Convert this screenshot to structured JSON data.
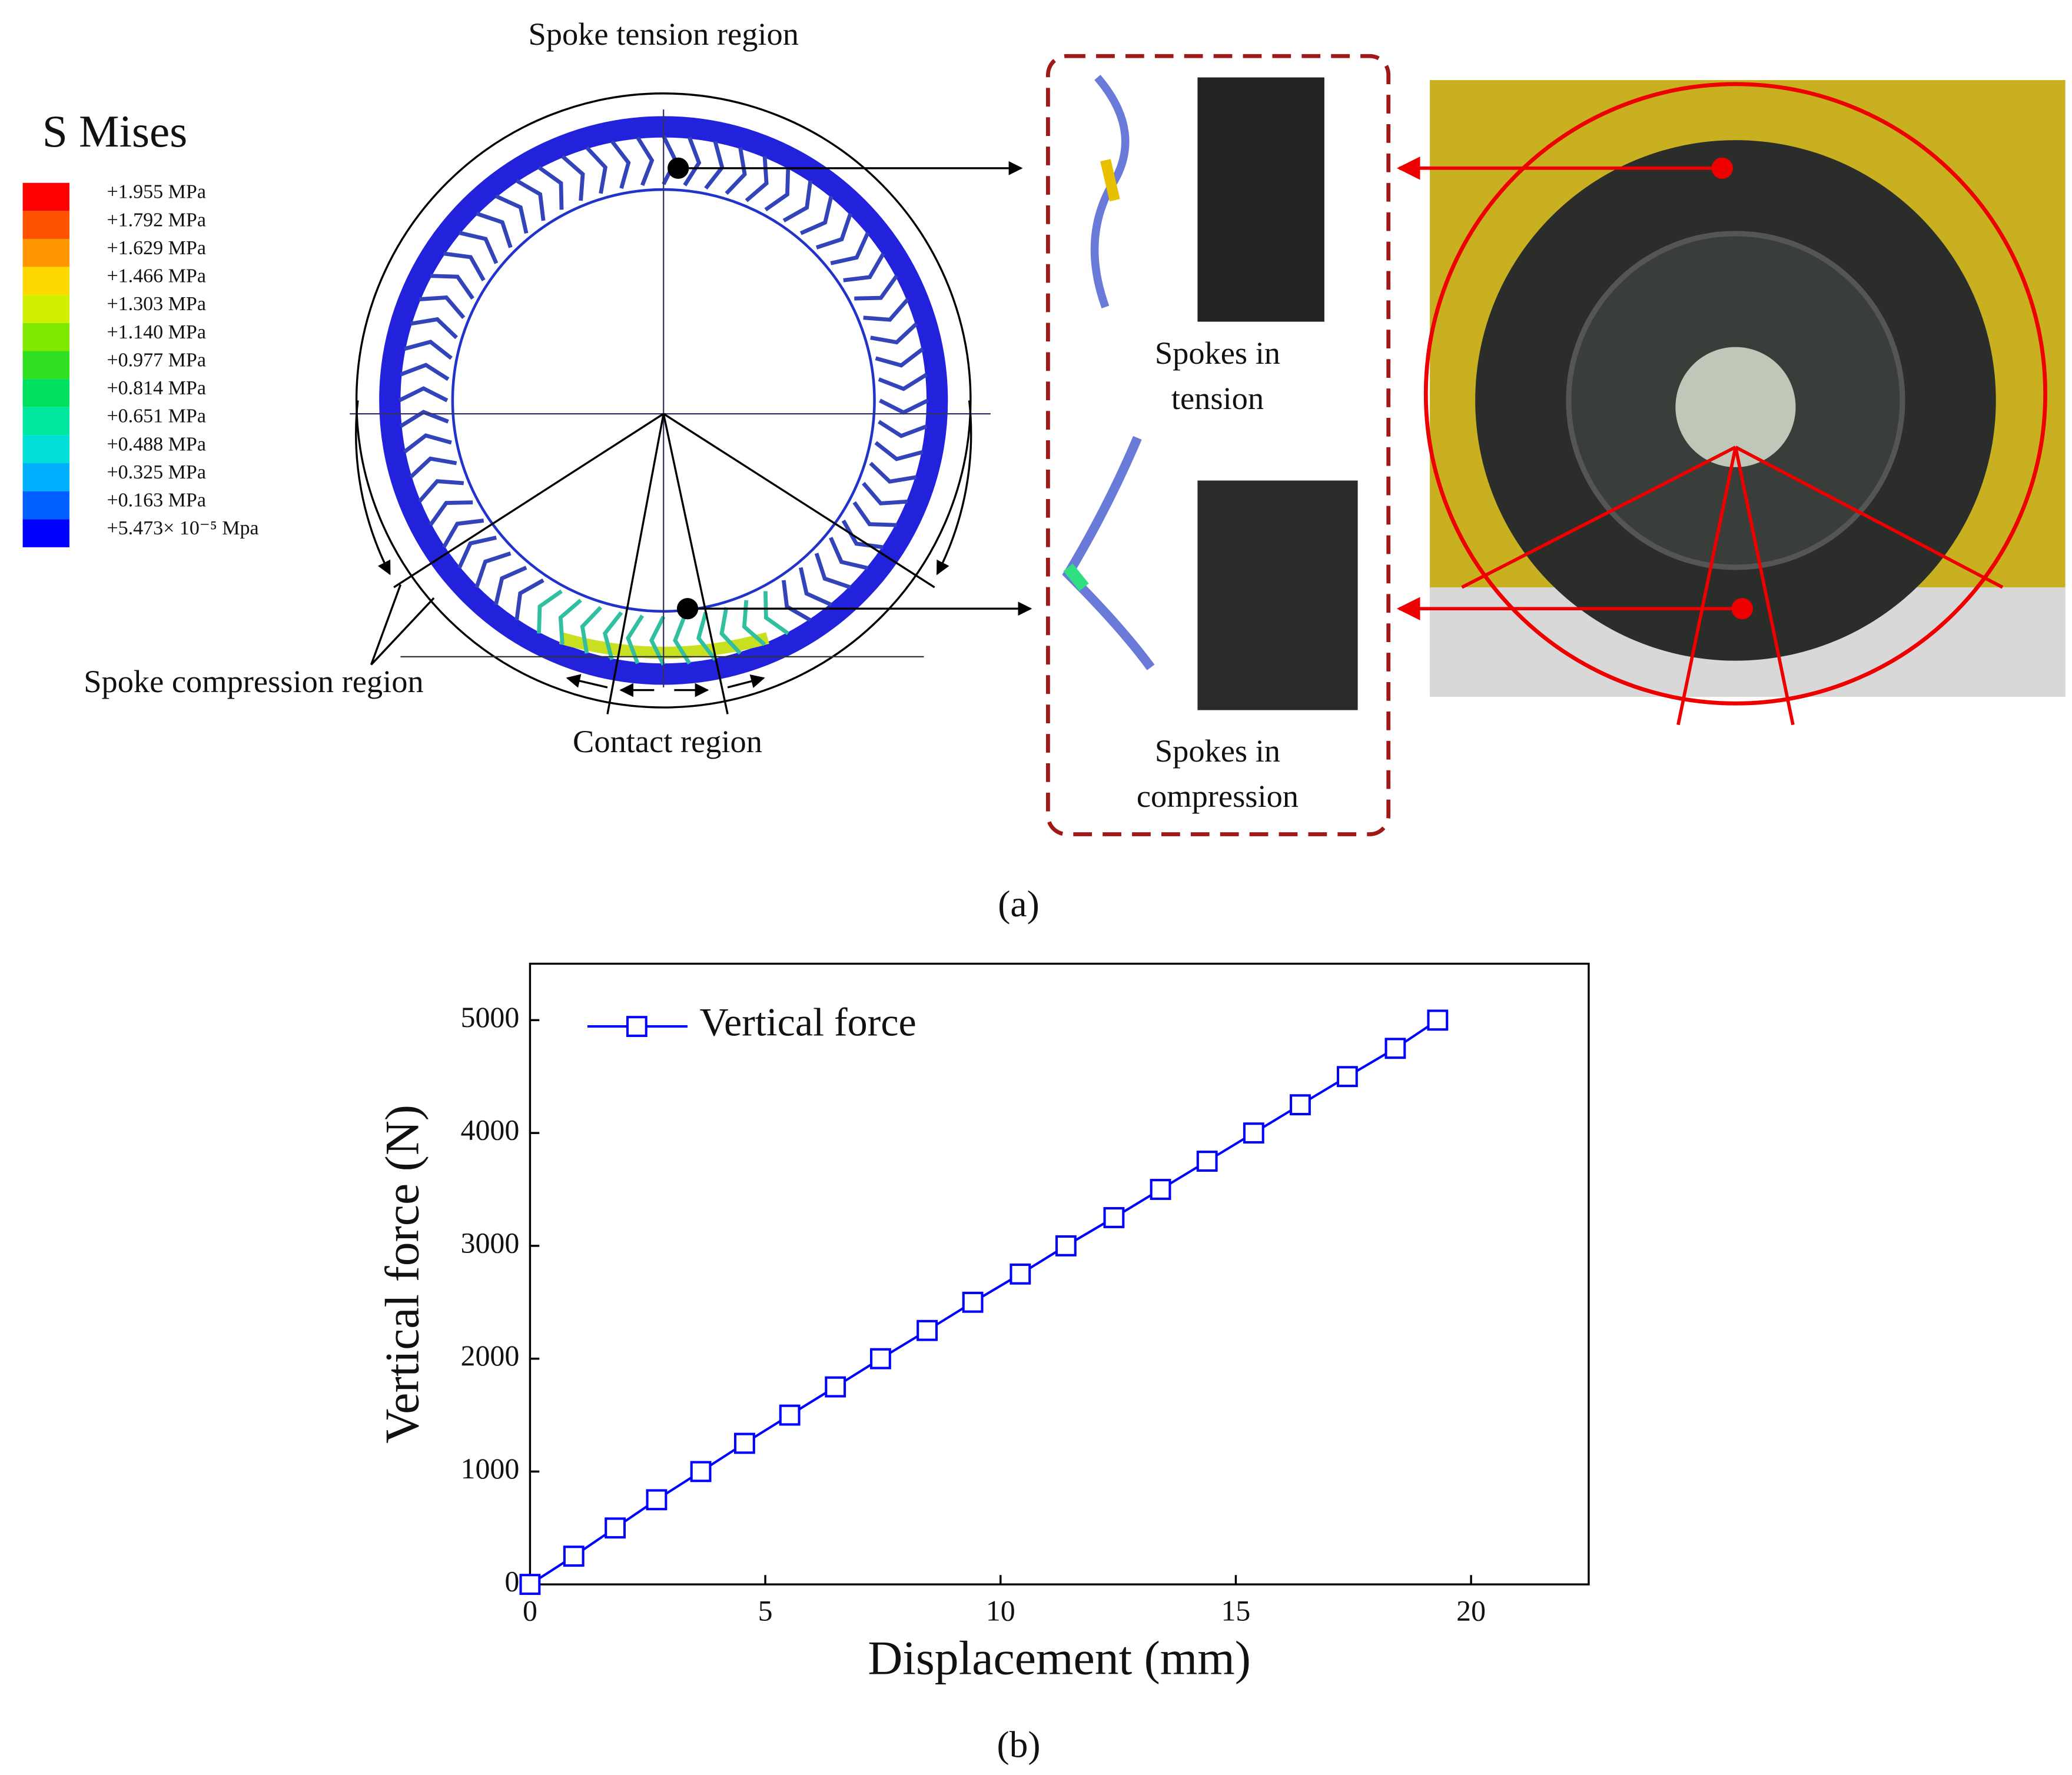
{
  "figure_a": {
    "legend_title": "S Mises",
    "legend": [
      {
        "label": "+1.955 MPa",
        "color": "#ff0000"
      },
      {
        "label": "+1.792 MPa",
        "color": "#ff5200"
      },
      {
        "label": "+1.629 MPa",
        "color": "#ff9800"
      },
      {
        "label": "+1.466 MPa",
        "color": "#ffd800"
      },
      {
        "label": "+1.303 MPa",
        "color": "#d0f000"
      },
      {
        "label": "+1.140 MPa",
        "color": "#80e800"
      },
      {
        "label": "+0.977 MPa",
        "color": "#30e020"
      },
      {
        "label": "+0.814 MPa",
        "color": "#00e060"
      },
      {
        "label": "+0.651 MPa",
        "color": "#00e8a0"
      },
      {
        "label": "+0.488 MPa",
        "color": "#00e0d8"
      },
      {
        "label": "+0.325 MPa",
        "color": "#00b0ff"
      },
      {
        "label": "+0.163 MPa",
        "color": "#0060ff"
      },
      {
        "label": "+5.473× 10⁻⁵ Mpa",
        "color": "#0000ff"
      }
    ],
    "tension_label": "Spoke tension region",
    "compression_label": "Spoke compression region",
    "contact_label": "Contact region",
    "tension_spokes": [
      "Spokes in",
      "tension"
    ],
    "compression_spokes": [
      "Spokes in",
      "compression"
    ],
    "caption": "(a)"
  },
  "chart_data": {
    "type": "line",
    "x_label": "Displacement (mm)",
    "y_label": "Vertical force (N)",
    "x": [
      0,
      0.93,
      1.81,
      2.69,
      3.63,
      4.56,
      5.52,
      6.49,
      7.45,
      8.44,
      9.41,
      10.42,
      11.39,
      12.41,
      13.4,
      14.39,
      15.38,
      16.37,
      17.37,
      18.39,
      19.29
    ],
    "series": [
      {
        "name": "Vertical force",
        "color": "#0000ff",
        "values": [
          0,
          250,
          500,
          750,
          1000,
          1250,
          1500,
          1750,
          2000,
          2250,
          2500,
          2750,
          3000,
          3250,
          3500,
          3750,
          4000,
          4250,
          4500,
          4750,
          5000
        ]
      }
    ],
    "xlim": [
      0,
      22.5
    ],
    "ylim": [
      0,
      5500
    ],
    "xticks": [
      0,
      5,
      10,
      15,
      20
    ],
    "yticks": [
      0,
      1000,
      2000,
      3000,
      4000,
      5000
    ],
    "legend": "upper left",
    "marker": "square",
    "caption": "(b)"
  }
}
